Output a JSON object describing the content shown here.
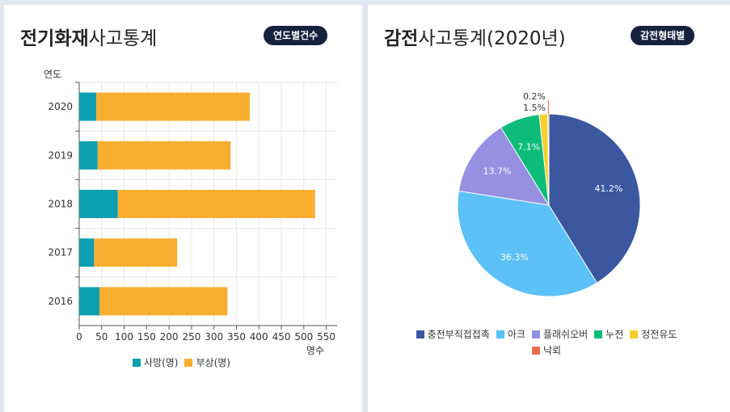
{
  "left": {
    "title_bold": "전기화재",
    "title_rest": "사고통계",
    "badge": "연도별건수",
    "chart_data": {
      "type": "bar",
      "orientation": "horizontal",
      "stacked": true,
      "categories": [
        "2020",
        "2019",
        "2018",
        "2017",
        "2016"
      ],
      "series": [
        {
          "name": "사망(명)",
          "values": [
            38,
            41,
            86,
            33,
            45
          ],
          "color": "#0c9fb1"
        },
        {
          "name": "부상(명)",
          "values": [
            342,
            296,
            439,
            185,
            285
          ],
          "color": "#f7ae31"
        }
      ],
      "xlabel": "명수",
      "ylabel": "연도",
      "xlim": [
        0,
        575
      ],
      "xticks": [
        0,
        50,
        100,
        150,
        200,
        250,
        300,
        350,
        400,
        450,
        500,
        550
      ],
      "grid": true,
      "legend": "bottom"
    }
  },
  "right": {
    "title_bold": "감전",
    "title_rest": "사고통계(2020년)",
    "badge": "감전형태별",
    "chart_data": {
      "type": "pie",
      "labels": [
        "충전부직접접촉",
        "아크",
        "플래쉬오버",
        "누전",
        "정전유도",
        "낙뢰"
      ],
      "values": [
        41.2,
        36.3,
        13.7,
        7.1,
        1.5,
        0.2
      ],
      "value_labels": [
        "41.2%",
        "36.3%",
        "13.7%",
        "7.1%",
        "1.5%",
        "0.2%"
      ],
      "colors": [
        "#3a57a0",
        "#5bc1f6",
        "#9590e2",
        "#0ebc7a",
        "#f7cf2b",
        "#ef6a50"
      ],
      "legend": "bottom"
    }
  }
}
